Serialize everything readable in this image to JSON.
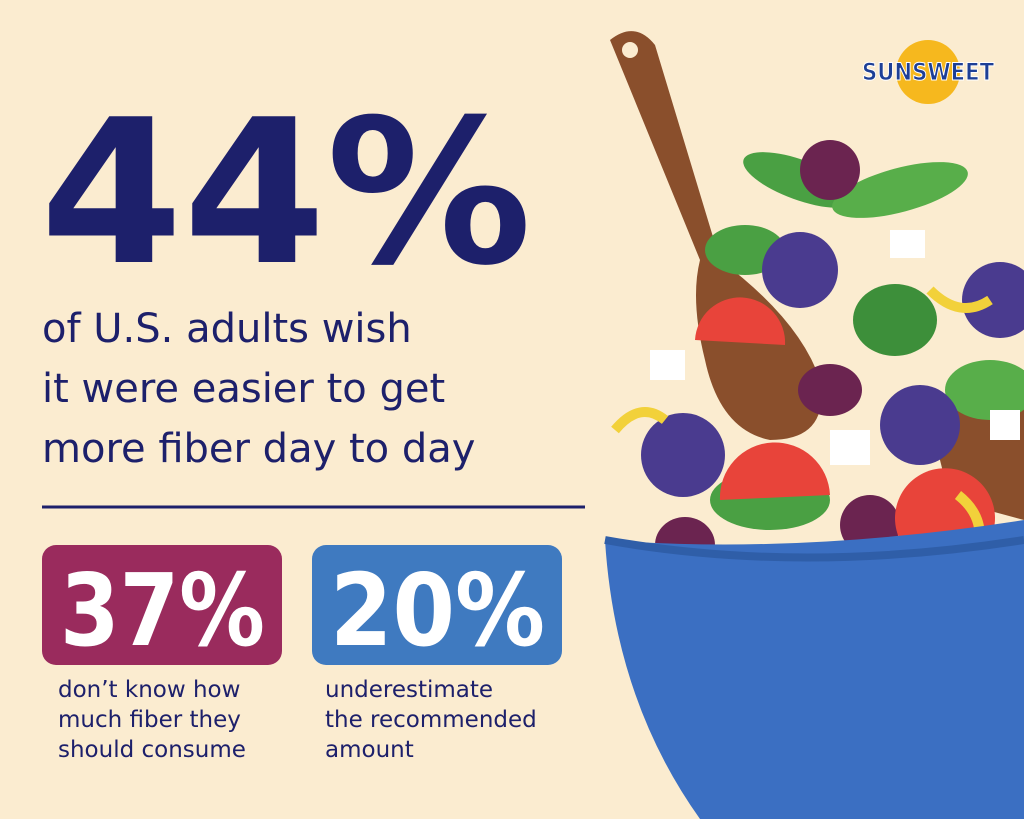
{
  "headline": {
    "stat": "44%",
    "lines": [
      "of U.S. adults wish",
      "it were easier to get",
      "more fiber day to day"
    ]
  },
  "stats": [
    {
      "stat": "37%",
      "lines": [
        "don’t know how",
        "much fiber they",
        "should consume"
      ]
    },
    {
      "stat": "20%",
      "lines": [
        "underestimate",
        "the recommended",
        "amount"
      ]
    }
  ],
  "brand": "SUNSWEET"
}
